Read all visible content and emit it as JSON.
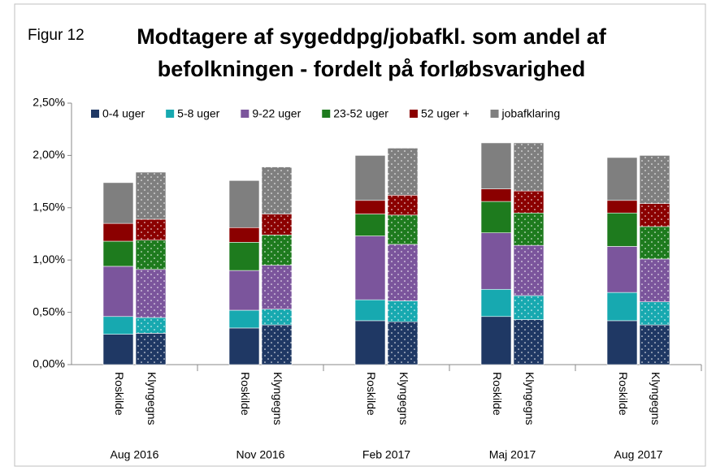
{
  "chart_data": {
    "type": "stacked_bar",
    "figure_label": "Figur 12",
    "title_lines": [
      "Modtagere af sygeddpg/jobafkl.  som andel af",
      "befolkningen - fordelt på forløbsvarighed"
    ],
    "groups": [
      "Aug 2016",
      "Nov 2016",
      "Feb 2017",
      "Maj 2017",
      "Aug 2017"
    ],
    "categories": [
      "Roskilde",
      "Klyngegns",
      "Roskilde",
      "Klyngegns",
      "Roskilde",
      "Klyngegns",
      "Roskilde",
      "Klyngegns",
      "Roskilde",
      "Klyngegns"
    ],
    "series": [
      {
        "name": "0-4 uger",
        "color": "#1f3864",
        "values": [
          0.29,
          0.3,
          0.35,
          0.38,
          0.42,
          0.41,
          0.46,
          0.43,
          0.42,
          0.38
        ]
      },
      {
        "name": "5-8 uger",
        "color": "#17a9b0",
        "values": [
          0.17,
          0.15,
          0.17,
          0.15,
          0.2,
          0.2,
          0.26,
          0.23,
          0.27,
          0.22
        ]
      },
      {
        "name": "9-22 uger",
        "color": "#7b559c",
        "values": [
          0.48,
          0.46,
          0.38,
          0.42,
          0.61,
          0.54,
          0.54,
          0.48,
          0.44,
          0.41
        ]
      },
      {
        "name": "23-52 uger",
        "color": "#1e7b1e",
        "values": [
          0.24,
          0.28,
          0.27,
          0.29,
          0.21,
          0.28,
          0.3,
          0.31,
          0.32,
          0.31
        ]
      },
      {
        "name": "52 uger +",
        "color": "#8b0000",
        "values": [
          0.17,
          0.2,
          0.14,
          0.2,
          0.13,
          0.19,
          0.12,
          0.21,
          0.12,
          0.22
        ]
      },
      {
        "name": "jobafklaring",
        "color": "#7f7f7f",
        "values": [
          0.39,
          0.45,
          0.45,
          0.45,
          0.43,
          0.45,
          0.44,
          0.46,
          0.41,
          0.46
        ]
      }
    ],
    "ylim": [
      0,
      2.5
    ],
    "yticks": [
      {
        "value": 0,
        "label": "0,00%"
      },
      {
        "value": 0.5,
        "label": "0,50%"
      },
      {
        "value": 1,
        "label": "1,00%"
      },
      {
        "value": 1.5,
        "label": "1,50%"
      },
      {
        "value": 2,
        "label": "2,00%"
      },
      {
        "value": 2.5,
        "label": "2,50%"
      }
    ],
    "legend": "top"
  }
}
